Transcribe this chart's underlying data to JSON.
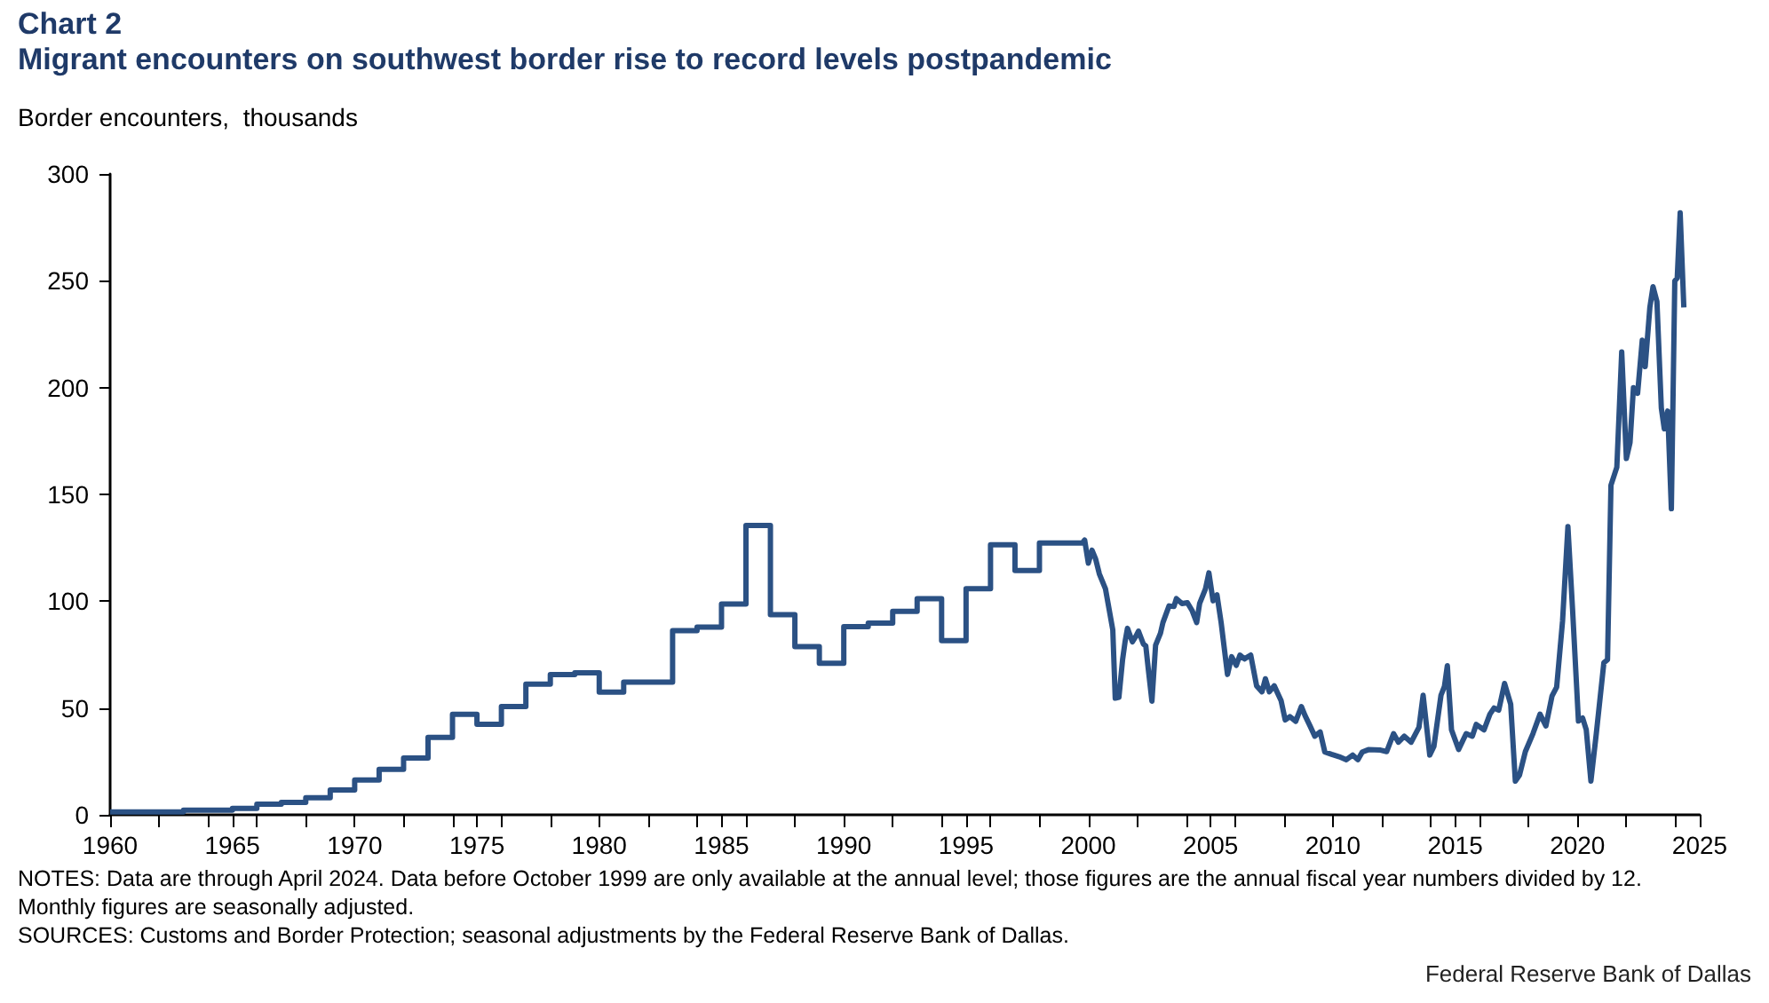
{
  "chart_data": {
    "type": "line",
    "title": "Chart 2",
    "subtitle": "Migrant encounters on southwest border rise to record levels postpandemic",
    "ylabel": "Border encounters,  thousands",
    "series": [
      {
        "color": "#2b5184",
        "x": [
          1960,
          1963,
          1963,
          1965,
          1965,
          1966,
          1966,
          1967,
          1967,
          1968,
          1968,
          1969,
          1969,
          1970,
          1970,
          1971,
          1971,
          1972,
          1972,
          1973,
          1973,
          1974,
          1974,
          1975,
          1975,
          1976,
          1976,
          1977,
          1977,
          1978,
          1978,
          1979,
          1979,
          1980,
          1980,
          1981,
          1981,
          1983,
          1983,
          1984,
          1984,
          1985,
          1985,
          1986,
          1986,
          1987,
          1987,
          1988,
          1988,
          1989,
          1989,
          1990,
          1990,
          1991,
          1991,
          1992,
          1992,
          1993,
          1993,
          1994,
          1994,
          1995,
          1995,
          1996,
          1996,
          1997,
          1997,
          1998,
          1998,
          1999.75,
          1999.85,
          2000.0,
          2000.15,
          2000.3,
          2000.45,
          2000.7,
          2000.85,
          2001.0,
          2001.1,
          2001.25,
          2001.4,
          2001.5,
          2001.6,
          2001.8,
          2001.95,
          2002.05,
          2002.25,
          2002.35,
          2002.45,
          2002.6,
          2002.75,
          2002.95,
          2003.05,
          2003.3,
          2003.5,
          2003.6,
          2003.83,
          2004.05,
          2004.24,
          2004.43,
          2004.55,
          2004.79,
          2004.93,
          2005.1,
          2005.26,
          2005.43,
          2005.69,
          2005.86,
          2006.05,
          2006.2,
          2006.38,
          2006.64,
          2006.88,
          2007.1,
          2007.24,
          2007.4,
          2007.6,
          2007.88,
          2008.05,
          2008.24,
          2008.48,
          2008.71,
          2008.86,
          2009.07,
          2009.26,
          2009.48,
          2009.67,
          2009.95,
          2010.26,
          2010.55,
          2010.81,
          2011.02,
          2011.2,
          2011.45,
          2011.95,
          2012.2,
          2012.48,
          2012.68,
          2012.92,
          2013.2,
          2013.52,
          2013.69,
          2013.96,
          2014.13,
          2014.42,
          2014.56,
          2014.68,
          2014.85,
          2015.14,
          2015.45,
          2015.7,
          2015.86,
          2016.18,
          2016.42,
          2016.59,
          2016.78,
          2017.02,
          2017.27,
          2017.46,
          2017.63,
          2017.87,
          2018.18,
          2018.47,
          2018.71,
          2018.96,
          2019.15,
          2019.39,
          2019.61,
          2019.8,
          2020.04,
          2020.21,
          2020.36,
          2020.55,
          2020.77,
          2021.08,
          2021.23,
          2021.37,
          2021.61,
          2021.81,
          2022.0,
          2022.15,
          2022.29,
          2022.46,
          2022.65,
          2022.77,
          2022.96,
          2023.09,
          2023.25,
          2023.43,
          2023.55,
          2023.69,
          2023.84,
          2023.98,
          2024.08,
          2024.2,
          2024.35
        ],
        "values": [
          1.4,
          1.4,
          2.2,
          2.2,
          3.0,
          3.0,
          5.0,
          5.0,
          5.8,
          5.8,
          8.0,
          8.0,
          11.6,
          11.6,
          16.3,
          16.3,
          21.3,
          21.3,
          26.6,
          26.6,
          36.3,
          36.3,
          47.1,
          47.1,
          42.4,
          42.4,
          50.7,
          50.7,
          61.2,
          61.2,
          65.7,
          65.7,
          66.5,
          66.5,
          57.4,
          57.4,
          62.1,
          62.1,
          86.2,
          86.2,
          87.9,
          87.9,
          98.7,
          98.7,
          135.5,
          135.5,
          93.7,
          93.7,
          78.7,
          78.7,
          70.9,
          70.9,
          88.1,
          88.1,
          89.8,
          89.8,
          95.3,
          95.3,
          101.2,
          101.2,
          81.5,
          81.5,
          105.8,
          105.8,
          126.4,
          126.4,
          114.4,
          114.4,
          127.2,
          127.2,
          128.6,
          117.8,
          123.9,
          119.7,
          112.8,
          105.8,
          96.2,
          86.5,
          54.6,
          55,
          72.6,
          80.9,
          87.3,
          81,
          83.7,
          86,
          80,
          79,
          68.4,
          53.2,
          79.4,
          85,
          90,
          97.8,
          97.5,
          101.2,
          98.9,
          99.3,
          95.7,
          90,
          98.9,
          105.8,
          113.3,
          100.2,
          103,
          90,
          65.7,
          74,
          70,
          74.8,
          73,
          74.8,
          60.4,
          57.6,
          63.7,
          57.6,
          60.4,
          53.5,
          44.4,
          46,
          43.8,
          50.7,
          46.5,
          41.5,
          36.8,
          38.8,
          29.4,
          28.3,
          27.2,
          25.8,
          28,
          25.8,
          29.4,
          30.5,
          30.3,
          29.6,
          38,
          34,
          36.8,
          34,
          41,
          56,
          28,
          32,
          56,
          60.1,
          69.8,
          39.8,
          30.6,
          38,
          36.8,
          42.3,
          39.8,
          47.1,
          50,
          49,
          61.5,
          51.8,
          15.8,
          18.6,
          29.6,
          38,
          47.1,
          41.6,
          55.6,
          59.8,
          90.6,
          134.9,
          96.2,
          43.9,
          45.3,
          39.8,
          15.8,
          38,
          71.2,
          72.6,
          154.3,
          162.7,
          216.7,
          166.8,
          174.3,
          200,
          197.3,
          222.2,
          209.8,
          237.5,
          247.2,
          240.3,
          190.4,
          180.7,
          189,
          143.3,
          249.9,
          251.3,
          281.8,
          237.5
        ]
      }
    ],
    "xlim": [
      1960,
      2025
    ],
    "xticks": [
      1960,
      1965,
      1970,
      1975,
      1980,
      1985,
      1990,
      1995,
      2000,
      2005,
      2010,
      2015,
      2020,
      2025
    ],
    "ylim": [
      0,
      300
    ],
    "yticks": [
      0,
      50,
      100,
      150,
      200,
      250,
      300
    ],
    "grid": false,
    "marker": "none",
    "line_style": "solid",
    "annotations": [
      "NOTES: Data are through April 2024. Data before October 1999 are only available at the annual level; those figures are the annual fiscal year numbers divided by 12. Monthly figures are seasonally adjusted.",
      "SOURCES: Customs and Border Protection; seasonal adjustments by the Federal Reserve Bank of Dallas.",
      "Federal Reserve Bank of Dallas"
    ]
  }
}
